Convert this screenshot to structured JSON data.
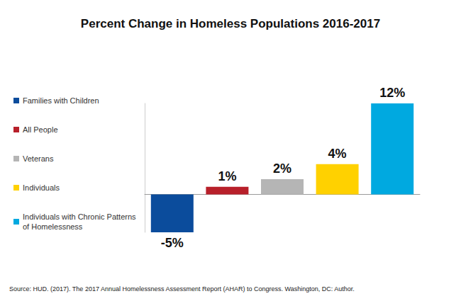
{
  "chart_data": {
    "type": "bar",
    "title": "Percent Change in Homeless Populations 2016-2017",
    "categories": [
      "Families with Children",
      "All People",
      "Veterans",
      "Individuals",
      "Individuals with Chronic Patterns of Homelessness"
    ],
    "values": [
      -5,
      1,
      2,
      4,
      12
    ],
    "value_labels": [
      "-5%",
      "1%",
      "2%",
      "4%",
      "12%"
    ],
    "colors": [
      "#0b4c9c",
      "#b8202a",
      "#b5b5b5",
      "#ffd100",
      "#00a9e0"
    ],
    "ylim": [
      -5,
      12
    ],
    "yticks": [
      0
    ],
    "grid": false,
    "tick_labels": false,
    "data_labels": true,
    "legend": "left",
    "annotations": [
      "Source: HUD. (2017). The 2017 Annual Homelessness Assessment Report (AHAR) to Congress. Washington, DC: Author."
    ]
  }
}
